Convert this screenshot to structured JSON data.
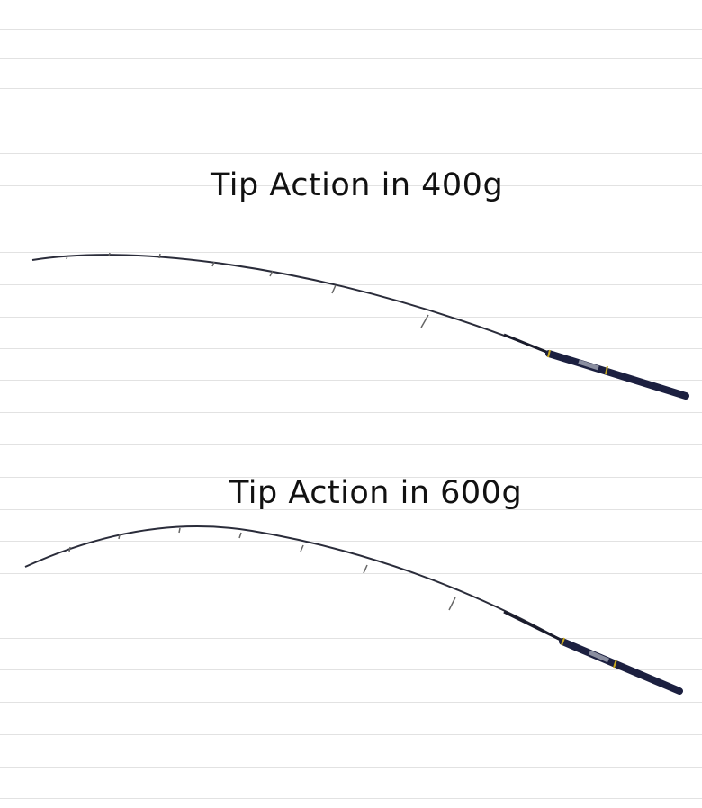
{
  "panels": [
    {
      "title": "Tip Action in 400g"
    },
    {
      "title": "Tip Action in 600g"
    }
  ],
  "colors": {
    "rod_blank": "#1a1c2c",
    "handle": "#1c2040",
    "accent_ring": "#c8a81e",
    "rule_line": "#e2e2e2"
  }
}
